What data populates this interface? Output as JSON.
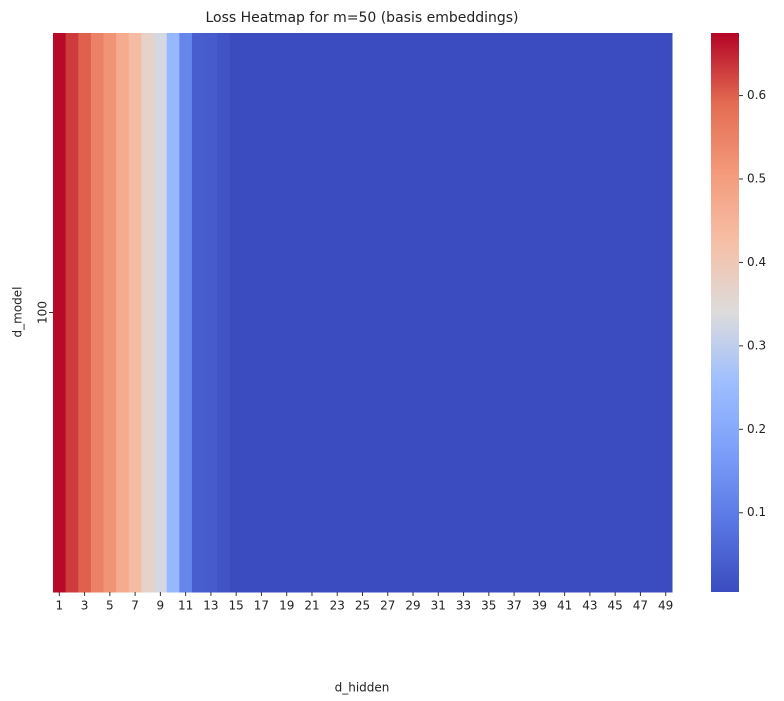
{
  "chart_data": {
    "type": "heatmap",
    "title": "Loss Heatmap for m=50 (basis embeddings)",
    "x_label": "d_hidden",
    "y_label": "d_model",
    "categories": [
      1,
      null,
      3,
      null,
      5,
      null,
      7,
      null,
      9,
      null,
      11,
      null,
      13,
      null,
      15,
      null,
      17,
      null,
      19,
      null,
      21,
      null,
      23,
      null,
      25,
      null,
      27,
      null,
      29,
      null,
      31,
      null,
      33,
      null,
      35,
      null,
      37,
      null,
      39,
      null,
      41,
      null,
      43,
      null,
      45,
      null,
      47,
      null,
      49
    ],
    "rows": [
      "100"
    ],
    "values": [
      [
        0.67,
        0.63,
        0.6,
        0.55,
        0.52,
        0.47,
        0.43,
        0.37,
        0.33,
        0.24,
        0.12,
        0.04,
        0.035,
        0.02,
        0.005,
        0.005,
        0.005,
        0.005,
        0.005,
        0.005,
        0.005,
        0.005,
        0.005,
        0.005,
        0.005,
        0.005,
        0.005,
        0.005,
        0.005,
        0.005,
        0.005,
        0.005,
        0.005,
        0.005,
        0.005,
        0.005,
        0.005,
        0.005,
        0.005,
        0.005,
        0.005,
        0.005,
        0.005,
        0.005,
        0.005,
        0.005,
        0.005,
        0.005,
        0.005
      ]
    ],
    "clim": [
      0.005,
      0.675
    ],
    "cticks": [
      0.1,
      0.2,
      0.3,
      0.4,
      0.5,
      0.6
    ],
    "colormap": [
      "#3b4cc0",
      "#5977e3",
      "#7b9ff9",
      "#9ebeff",
      "#dddcdc",
      "#f6bfa6",
      "#f49a7b",
      "#e36b51",
      "#b40426"
    ]
  }
}
